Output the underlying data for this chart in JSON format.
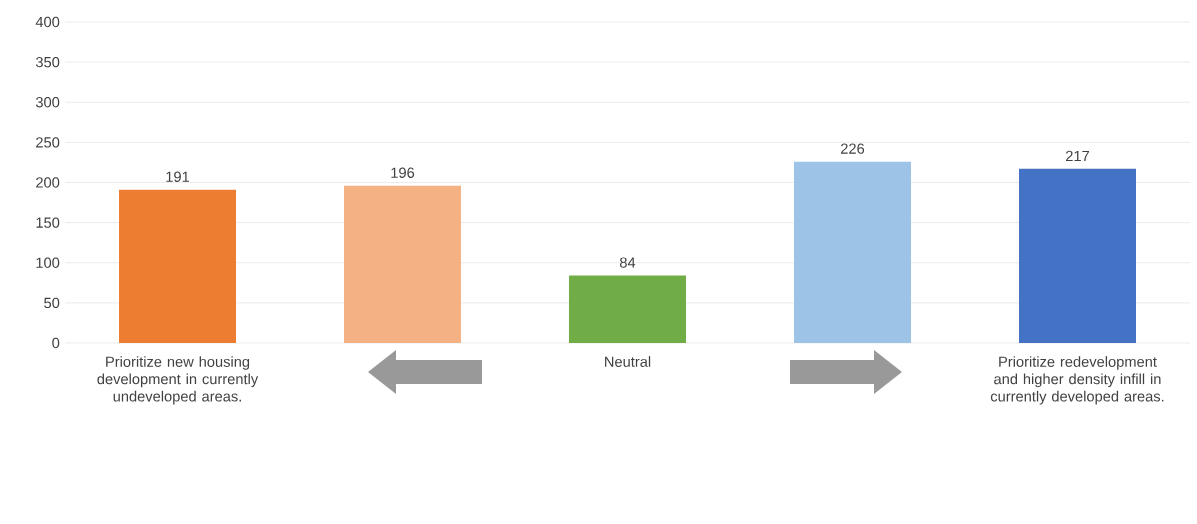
{
  "chart_data": {
    "type": "bar",
    "categories": [
      "Prioritize new housing development in currently undeveloped areas.",
      null,
      "Neutral",
      null,
      "Prioritize redevelopment and higher density infill in currently developed areas."
    ],
    "values": [
      191,
      196,
      84,
      226,
      217
    ],
    "colors": [
      "#ed7d31",
      "#f4b183",
      "#70ad47",
      "#9dc3e6",
      "#4472c4"
    ],
    "ylim": [
      0,
      400
    ],
    "yticks": [
      0,
      50,
      100,
      150,
      200,
      250,
      300,
      350,
      400
    ],
    "grid": "y",
    "data_labels": true
  }
}
